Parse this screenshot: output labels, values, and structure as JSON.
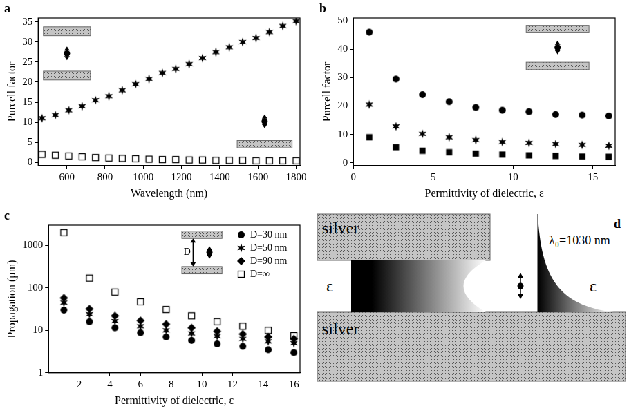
{
  "chart_data": [
    {
      "type": "scatter",
      "panel": "a",
      "x_label": "Wavelength (nm)",
      "y_label": "Purcell factor",
      "x": [
        470,
        540,
        610,
        680,
        750,
        820,
        890,
        960,
        1030,
        1100,
        1170,
        1240,
        1310,
        1380,
        1450,
        1520,
        1590,
        1660,
        1730,
        1800
      ],
      "series": [
        {
          "color": "#000000",
          "marker": "star",
          "values": [
            11,
            11.8,
            13,
            14,
            15.5,
            16.5,
            18,
            19.5,
            20.8,
            22.3,
            23.3,
            24.5,
            26,
            27.5,
            28.7,
            30,
            31,
            32.5,
            34,
            35.2
          ]
        },
        {
          "color": "#000000",
          "marker": "open_square",
          "values": [
            2,
            1.8,
            1.6,
            1.4,
            1.2,
            1.1,
            1,
            0.9,
            0.8,
            0.7,
            0.7,
            0.6,
            0.6,
            0.5,
            0.5,
            0.5,
            0.4,
            0.4,
            0.4,
            0.4
          ]
        }
      ],
      "xlim": [
        450,
        1820
      ],
      "xticks": [
        600,
        800,
        1000,
        1200,
        1400,
        1600,
        1800
      ],
      "ylim": [
        -0.8,
        36
      ],
      "yticks": [
        0,
        5,
        10,
        15,
        20,
        25,
        30,
        35
      ],
      "grid": false
    },
    {
      "type": "scatter",
      "panel": "b",
      "x_label": "Permittivity of dielectric, ε",
      "y_label": "Purcell factor",
      "x": [
        1,
        2.67,
        4.33,
        6,
        7.67,
        9.33,
        11,
        12.67,
        14.33,
        16
      ],
      "series": [
        {
          "color": "#000000",
          "marker": "circle",
          "values": [
            46,
            29.5,
            24,
            21.5,
            19.5,
            18.5,
            18,
            17,
            16.8,
            16.5
          ]
        },
        {
          "color": "#000000",
          "marker": "star",
          "values": [
            20.5,
            12.8,
            10.2,
            9,
            8,
            7.3,
            7,
            6.6,
            6.3,
            6
          ]
        },
        {
          "color": "#000000",
          "marker": "square",
          "values": [
            9,
            5.5,
            4.2,
            3.7,
            3.2,
            2.9,
            2.6,
            2.4,
            2.2,
            2.1
          ]
        }
      ],
      "xlim": [
        0,
        16.4
      ],
      "xticks": [
        0,
        5,
        10,
        15
      ],
      "ylim": [
        -1,
        51
      ],
      "yticks": [
        0,
        10,
        20,
        30,
        40,
        50
      ],
      "grid": false
    },
    {
      "type": "scatter",
      "panel": "c",
      "x_label": "Permittivity of dielectric, ε",
      "y_label": "Propagation (μm)",
      "annotations": [
        "D"
      ],
      "x": [
        1,
        2.67,
        4.33,
        6,
        7.67,
        9.33,
        11,
        12.67,
        14.33,
        16
      ],
      "series": [
        {
          "name": "D=30 nm",
          "color": "#000000",
          "marker": "circle",
          "values": [
            30,
            16,
            11.5,
            8.8,
            7,
            5.8,
            4.8,
            4.2,
            3.5,
            3
          ]
        },
        {
          "name": "D=50 nm",
          "color": "#000000",
          "marker": "star",
          "values": [
            45,
            24,
            16.5,
            12.5,
            10,
            8.5,
            7.3,
            6.3,
            5.5,
            5
          ]
        },
        {
          "name": "D=90 nm",
          "color": "#000000",
          "marker": "diamond",
          "values": [
            58,
            32,
            22,
            17,
            14,
            11.5,
            9.5,
            8.2,
            7,
            6.3
          ]
        },
        {
          "name": "D=∞",
          "color": "#000000",
          "marker": "open_square",
          "values": [
            2000,
            170,
            80,
            47,
            31,
            22,
            16,
            12.5,
            10,
            7.5
          ]
        }
      ],
      "xlim": [
        0,
        16.4
      ],
      "xticks": [
        2,
        4,
        6,
        8,
        10,
        12,
        14,
        16
      ],
      "ylim": [
        1,
        3000
      ],
      "yticks": [
        1,
        10,
        100,
        1000
      ],
      "log": "y",
      "legend": "upper right",
      "grid": false
    }
  ],
  "diagram": {
    "panel": "d",
    "top_slab": "silver",
    "bottom_slab": "silver",
    "left_medium": "ε",
    "right_medium": "ε",
    "wavelength_label": "λ₀=1030 nm"
  }
}
